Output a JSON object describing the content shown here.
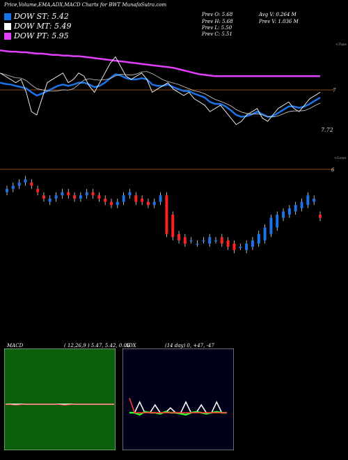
{
  "header": {
    "title": "Price,Volume,EMA,ADX,MACD Charts for BWT MunafaSutra.com"
  },
  "dow": [
    {
      "label": "DOW ST: 5.42",
      "color": "#1a73e8"
    },
    {
      "label": "DOW MT: 5.49",
      "color": "#ffffff"
    },
    {
      "label": "DOW PT: 5.95",
      "color": "#e040fb"
    }
  ],
  "stats": {
    "prev_open": "Prev  O: 5.68",
    "prev_high": "Prev  H: 5.68",
    "prev_low": "Prev  L: 5.50",
    "prev_close": "Prev  C: 5.51",
    "avg_volume": "Avg V: 0.264  M",
    "prev_volume": "Prev  V: 1.036  M"
  },
  "chart_data": [
    {
      "type": "line",
      "title": "",
      "annotations": {
        "top_right": "<Tops",
        "bottom_right": "<Lows",
        "price_label": "7.72",
        "level_a": "7",
        "level_b": "6"
      },
      "close": [
        7.6,
        7.55,
        7.5,
        7.45,
        7.5,
        7.3,
        7.0,
        6.95,
        7.2,
        7.45,
        7.5,
        7.55,
        7.6,
        7.45,
        7.5,
        7.6,
        7.55,
        7.4,
        7.3,
        7.45,
        7.6,
        7.75,
        7.85,
        7.7,
        7.55,
        7.5,
        7.55,
        7.6,
        7.5,
        7.3,
        7.35,
        7.4,
        7.45,
        7.35,
        7.3,
        7.25,
        7.3,
        7.2,
        7.15,
        7.1,
        7.0,
        7.05,
        7.1,
        7.0,
        6.9,
        6.8,
        6.85,
        6.95,
        7.0,
        7.05,
        6.9,
        6.85,
        6.95,
        7.05,
        7.1,
        7.15,
        7.05,
        7.0,
        7.1,
        7.2,
        7.25,
        7.3
      ],
      "series": [
        {
          "name": "",
          "color": "#e040fb",
          "values": [
            7.95,
            7.94,
            7.93,
            7.93,
            7.92,
            7.92,
            7.91,
            7.9,
            7.9,
            7.89,
            7.88,
            7.88,
            7.87,
            7.87,
            7.86,
            7.86,
            7.85,
            7.84,
            7.83,
            7.82,
            7.81,
            7.8,
            7.79,
            7.78,
            7.77,
            7.76,
            7.75,
            7.74,
            7.73,
            7.72,
            7.71,
            7.7,
            7.69,
            7.68,
            7.66,
            7.64,
            7.62,
            7.6,
            7.58,
            7.57,
            7.56,
            7.55,
            7.55,
            7.55,
            7.55,
            7.55,
            7.55,
            7.55,
            7.55,
            7.55,
            7.55,
            7.55,
            7.55,
            7.55,
            7.55,
            7.55,
            7.55,
            7.55,
            7.55,
            7.55,
            7.55,
            7.55
          ]
        },
        {
          "name": "",
          "color": "#1a73e8",
          "values": [
            7.45,
            7.43,
            7.42,
            7.4,
            7.38,
            7.36,
            7.3,
            7.25,
            7.28,
            7.32,
            7.36,
            7.4,
            7.42,
            7.4,
            7.42,
            7.45,
            7.45,
            7.42,
            7.38,
            7.4,
            7.45,
            7.52,
            7.58,
            7.56,
            7.52,
            7.5,
            7.5,
            7.52,
            7.5,
            7.42,
            7.4,
            7.4,
            7.42,
            7.38,
            7.35,
            7.32,
            7.32,
            7.28,
            7.25,
            7.22,
            7.15,
            7.12,
            7.12,
            7.08,
            7.02,
            6.95,
            6.92,
            6.93,
            6.96,
            7.0,
            6.96,
            6.92,
            6.93,
            6.98,
            7.03,
            7.08,
            7.08,
            7.06,
            7.08,
            7.12,
            7.17,
            7.22
          ]
        }
      ],
      "candles_open": [
        6.35,
        6.4,
        6.45,
        6.5,
        6.5,
        6.4,
        6.3,
        6.2,
        6.25,
        6.3,
        6.35,
        6.3,
        6.25,
        6.3,
        6.35,
        6.3,
        6.25,
        6.2,
        6.15,
        6.2,
        6.3,
        6.3,
        6.25,
        6.2,
        6.15,
        6.2,
        6.3,
        6.0,
        5.7,
        5.65,
        5.6,
        5.55,
        5.6,
        5.55,
        5.6,
        5.65,
        5.6,
        5.55,
        5.5,
        5.45,
        5.5,
        5.55,
        5.6,
        5.7,
        5.8,
        5.95,
        6.0,
        6.05,
        6.1,
        6.15,
        6.2,
        6.0
      ],
      "candles_close": [
        6.4,
        6.45,
        6.5,
        6.55,
        6.45,
        6.35,
        6.25,
        6.25,
        6.3,
        6.35,
        6.3,
        6.25,
        6.3,
        6.35,
        6.3,
        6.25,
        6.2,
        6.15,
        6.2,
        6.3,
        6.35,
        6.2,
        6.2,
        6.15,
        6.2,
        6.3,
        5.7,
        5.65,
        5.6,
        5.55,
        5.6,
        5.55,
        5.6,
        5.65,
        5.6,
        5.55,
        5.5,
        5.45,
        5.5,
        5.55,
        5.6,
        5.7,
        5.8,
        5.95,
        6.0,
        6.05,
        6.1,
        6.15,
        6.2,
        6.3,
        6.25,
        5.95
      ]
    },
    {
      "type": "line",
      "title": "MACD",
      "params": "( 12,26,9 ) 5.47,  5.42,  0.05",
      "series": [
        {
          "name": "",
          "color": "#ffffff",
          "values": [
            0.05,
            0.05,
            0.05,
            0.05,
            0.05,
            0.05,
            0.05,
            0.05,
            0.05,
            0.05,
            0.05,
            0.05
          ]
        },
        {
          "name": "",
          "color": "#ff3333",
          "values": [
            0.05,
            0.04,
            0.05,
            0.05,
            0.05,
            0.05,
            0.04,
            0.05,
            0.05,
            0.05,
            0.05,
            0.05
          ]
        }
      ]
    },
    {
      "type": "line",
      "title": "ADX",
      "params": "(14  day) 0,  +47,  -47",
      "series": [
        {
          "name": "",
          "color": "#ffffff",
          "values": [
            47,
            47,
            58,
            47,
            47,
            55,
            47,
            47,
            52,
            47,
            47,
            58,
            47,
            47,
            55,
            47,
            47,
            58,
            47,
            47
          ]
        },
        {
          "name": "",
          "color": "#33ff33",
          "values": [
            47,
            47,
            45,
            48,
            47,
            47,
            46,
            48,
            47,
            47,
            46,
            45,
            47,
            48,
            47,
            46,
            47,
            48,
            47,
            47
          ]
        },
        {
          "name": "",
          "color": "#ff3333",
          "values": [
            62,
            47,
            47,
            47,
            47,
            47,
            47,
            47,
            47,
            47,
            47,
            47,
            47,
            47,
            47,
            47,
            47,
            47,
            47,
            47
          ]
        }
      ]
    }
  ]
}
